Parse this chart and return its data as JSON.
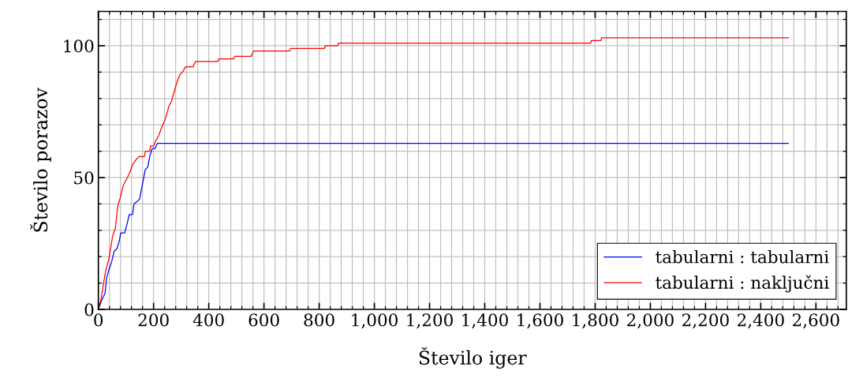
{
  "chart_data": {
    "type": "line",
    "xlabel": "Število iger",
    "ylabel": "Število porazov",
    "xlim": [
      0,
      2710
    ],
    "ylim": [
      0,
      113
    ],
    "xticks": [
      0,
      200,
      400,
      600,
      800,
      {
        "value": 1000,
        "label": "1,000"
      },
      {
        "value": 1200,
        "label": "1,200"
      },
      {
        "value": 1400,
        "label": "1,400"
      },
      {
        "value": 1600,
        "label": "1,600"
      },
      {
        "value": 1800,
        "label": "1,800"
      },
      {
        "value": 2000,
        "label": "2,000"
      },
      {
        "value": 2200,
        "label": "2,200"
      },
      {
        "value": 2400,
        "label": "2,400"
      },
      {
        "value": 2600,
        "label": "2,600"
      },
      {
        "value": 40,
        "label": null
      },
      {
        "value": 80,
        "label": null
      },
      {
        "value": 120,
        "label": null
      },
      {
        "value": 160,
        "label": null
      },
      {
        "value": 240,
        "label": null
      },
      {
        "value": 280,
        "label": null
      },
      {
        "value": 320,
        "label": null
      },
      {
        "value": 360,
        "label": null
      },
      {
        "value": 440,
        "label": null
      },
      {
        "value": 480,
        "label": null
      },
      {
        "value": 520,
        "label": null
      },
      {
        "value": 560,
        "label": null
      },
      {
        "value": 640,
        "label": null
      },
      {
        "value": 680,
        "label": null
      },
      {
        "value": 720,
        "label": null
      },
      {
        "value": 760,
        "label": null
      },
      {
        "value": 840,
        "label": null
      },
      {
        "value": 880,
        "label": null
      },
      {
        "value": 920,
        "label": null
      },
      {
        "value": 960,
        "label": null
      },
      {
        "value": 1040,
        "label": null
      },
      {
        "value": 1080,
        "label": null
      },
      {
        "value": 1120,
        "label": null
      },
      {
        "value": 1160,
        "label": null
      },
      {
        "value": 1240,
        "label": null
      },
      {
        "value": 1280,
        "label": null
      },
      {
        "value": 1320,
        "label": null
      },
      {
        "value": 1360,
        "label": null
      },
      {
        "value": 1440,
        "label": null
      },
      {
        "value": 1480,
        "label": null
      },
      {
        "value": 1520,
        "label": null
      },
      {
        "value": 1560,
        "label": null
      },
      {
        "value": 1640,
        "label": null
      },
      {
        "value": 1680,
        "label": null
      },
      {
        "value": 1720,
        "label": null
      },
      {
        "value": 1760,
        "label": null
      },
      {
        "value": 1840,
        "label": null
      },
      {
        "value": 1880,
        "label": null
      },
      {
        "value": 1920,
        "label": null
      },
      {
        "value": 1960,
        "label": null
      },
      {
        "value": 2040,
        "label": null
      },
      {
        "value": 2080,
        "label": null
      },
      {
        "value": 2120,
        "label": null
      },
      {
        "value": 2160,
        "label": null
      },
      {
        "value": 2240,
        "label": null
      },
      {
        "value": 2280,
        "label": null
      },
      {
        "value": 2320,
        "label": null
      },
      {
        "value": 2360,
        "label": null
      },
      {
        "value": 2440,
        "label": null
      },
      {
        "value": 2480,
        "label": null
      },
      {
        "value": 2520,
        "label": null
      },
      {
        "value": 2560,
        "label": null
      },
      {
        "value": 2640,
        "label": null
      },
      {
        "value": 2680,
        "label": null
      }
    ],
    "yticks": [
      0,
      50,
      100,
      {
        "value": 10,
        "label": null
      },
      {
        "value": 20,
        "label": null
      },
      {
        "value": 30,
        "label": null
      },
      {
        "value": 40,
        "label": null
      },
      {
        "value": 60,
        "label": null
      },
      {
        "value": 70,
        "label": null
      },
      {
        "value": 80,
        "label": null
      },
      {
        "value": 90,
        "label": null
      },
      {
        "value": 110,
        "label": null
      }
    ],
    "grid": true,
    "legend": "bottom right",
    "marker": "none",
    "line_style": "solid",
    "series": [
      {
        "name": "tabularni : tabularni",
        "color": "#0000ff",
        "x": [
          0,
          14,
          24,
          30,
          38,
          48,
          57,
          67,
          76,
          81,
          95,
          103,
          112,
          124,
          129,
          141,
          150,
          157,
          170,
          179,
          186,
          195,
          205,
          214,
          2500
        ],
        "values": [
          0,
          4,
          6,
          12,
          15,
          18,
          22,
          23,
          26,
          29,
          29,
          32,
          36,
          36,
          40,
          41,
          42,
          46,
          53,
          54,
          58,
          61,
          61,
          63,
          63
        ]
      },
      {
        "name": "tabularni : naključni",
        "color": "#ff0000",
        "x": [
          0,
          10,
          19,
          27,
          38,
          52,
          62,
          70,
          81,
          90,
          105,
          114,
          124,
          138,
          148,
          167,
          170,
          186,
          189,
          200,
          208,
          219,
          229,
          238,
          248,
          255,
          265,
          276,
          284,
          295,
          305,
          316,
          343,
          352,
          433,
          436,
          490,
          495,
          554,
          562,
          693,
          697,
          819,
          822,
          868,
          870,
          1784,
          1786,
          1821,
          1823,
          2500
        ],
        "values": [
          0,
          4,
          10,
          15,
          19,
          28,
          31,
          39,
          43,
          47,
          50,
          52,
          55,
          57,
          58,
          58,
          60,
          60,
          62,
          62,
          64,
          66,
          69,
          71,
          74,
          77,
          79,
          83,
          86,
          89,
          90,
          92,
          92,
          94,
          94,
          95,
          95,
          96,
          96,
          98,
          98,
          99,
          99,
          100,
          100,
          101,
          101,
          102,
          102,
          103,
          103
        ]
      }
    ]
  }
}
